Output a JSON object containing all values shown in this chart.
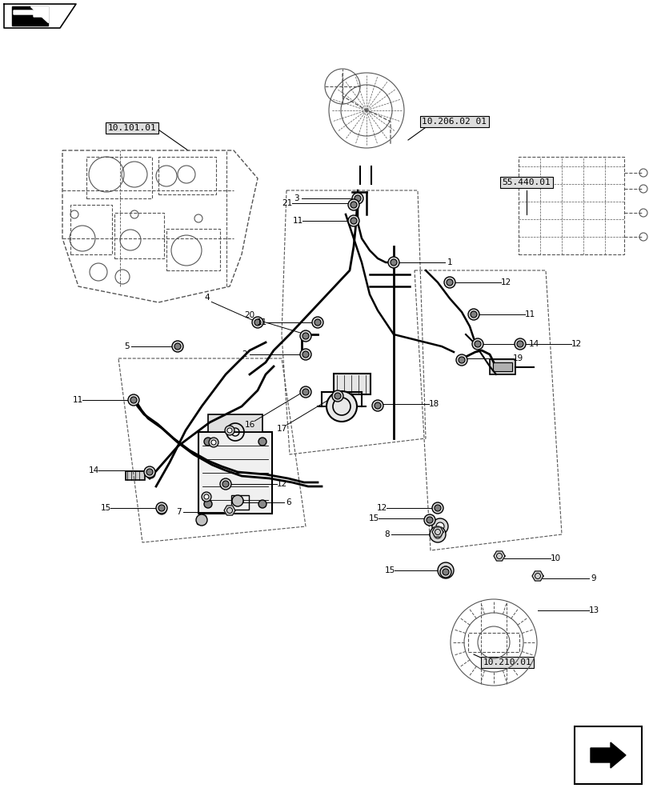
{
  "bg_color": "#ffffff",
  "line_color": "#000000",
  "dashed_color": "#555555",
  "label_color": "#000000",
  "ref_box_color": "#dddddd",
  "title": "",
  "labels": {
    "ref1": "10.101.01",
    "ref2": "10.206.02 01",
    "ref3": "55.440.01",
    "ref4": "10.210.01"
  },
  "figsize": [
    8.12,
    10.0
  ],
  "dpi": 100
}
